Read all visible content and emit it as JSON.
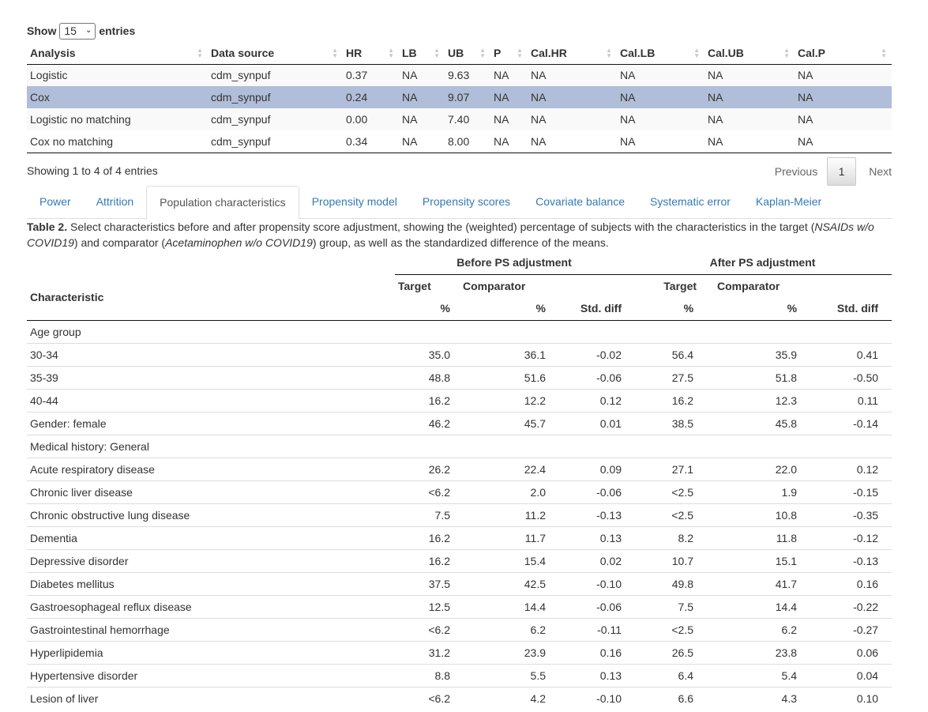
{
  "length": {
    "show": "Show",
    "value": "15",
    "entries": "entries"
  },
  "results": {
    "columns": [
      "Analysis",
      "Data source",
      "HR",
      "LB",
      "UB",
      "P",
      "Cal.HR",
      "Cal.LB",
      "Cal.UB",
      "Cal.P"
    ],
    "rows": [
      [
        "Logistic",
        "cdm_synpuf",
        "0.37",
        "NA",
        "9.63",
        "NA",
        "NA",
        "NA",
        "NA",
        "NA"
      ],
      [
        "Cox",
        "cdm_synpuf",
        "0.24",
        "NA",
        "9.07",
        "NA",
        "NA",
        "NA",
        "NA",
        "NA"
      ],
      [
        "Logistic no matching",
        "cdm_synpuf",
        "0.00",
        "NA",
        "7.40",
        "NA",
        "NA",
        "NA",
        "NA",
        "NA"
      ],
      [
        "Cox no matching",
        "cdm_synpuf",
        "0.34",
        "NA",
        "8.00",
        "NA",
        "NA",
        "NA",
        "NA",
        "NA"
      ]
    ],
    "info": "Showing 1 to 4 of 4 entries",
    "pager": {
      "previous": "Previous",
      "page": "1",
      "next": "Next"
    }
  },
  "tabs": [
    "Power",
    "Attrition",
    "Population characteristics",
    "Propensity model",
    "Propensity scores",
    "Covariate balance",
    "Systematic error",
    "Kaplan-Meier"
  ],
  "caption": {
    "label": "Table 2.",
    "text1": " Select characteristics before and after propensity score adjustment, showing the (weighted) percentage of subjects with the characteristics in the target (",
    "target": "NSAIDs w/o COVID19",
    "text2": ") and comparator (",
    "comparator": "Acetaminophen w/o COVID19",
    "text3": ") group, as well as the standardized difference of the means."
  },
  "char_table": {
    "before": "Before PS adjustment",
    "after": "After PS adjustment",
    "characteristic": "Characteristic",
    "target": "Target",
    "comparator": "Comparator",
    "pct": "%",
    "std": "Std. diff",
    "rows": [
      [
        "Age group",
        "",
        "",
        "",
        "",
        "",
        ""
      ],
      [
        "30-34",
        "35.0",
        "36.1",
        "-0.02",
        "56.4",
        "35.9",
        "0.41"
      ],
      [
        "35-39",
        "48.8",
        "51.6",
        "-0.06",
        "27.5",
        "51.8",
        "-0.50"
      ],
      [
        "40-44",
        "16.2",
        "12.2",
        "0.12",
        "16.2",
        "12.3",
        "0.11"
      ],
      [
        "Gender: female",
        "46.2",
        "45.7",
        "0.01",
        "38.5",
        "45.8",
        "-0.14"
      ],
      [
        "Medical history: General",
        "",
        "",
        "",
        "",
        "",
        ""
      ],
      [
        "Acute respiratory disease",
        "26.2",
        "22.4",
        "0.09",
        "27.1",
        "22.0",
        "0.12"
      ],
      [
        "Chronic liver disease",
        "<6.2",
        "2.0",
        "-0.06",
        "<2.5",
        "1.9",
        "-0.15"
      ],
      [
        "Chronic obstructive lung disease",
        "7.5",
        "11.2",
        "-0.13",
        "<2.5",
        "10.8",
        "-0.35"
      ],
      [
        "Dementia",
        "16.2",
        "11.7",
        "0.13",
        "8.2",
        "11.8",
        "-0.12"
      ],
      [
        "Depressive disorder",
        "16.2",
        "15.4",
        "0.02",
        "10.7",
        "15.1",
        "-0.13"
      ],
      [
        "Diabetes mellitus",
        "37.5",
        "42.5",
        "-0.10",
        "49.8",
        "41.7",
        "0.16"
      ],
      [
        "Gastroesophageal reflux disease",
        "12.5",
        "14.4",
        "-0.06",
        "7.5",
        "14.4",
        "-0.22"
      ],
      [
        "Gastrointestinal hemorrhage",
        "<6.2",
        "6.2",
        "-0.11",
        "<2.5",
        "6.2",
        "-0.27"
      ],
      [
        "Hyperlipidemia",
        "31.2",
        "23.9",
        "0.16",
        "26.5",
        "23.8",
        "0.06"
      ],
      [
        "Hypertensive disorder",
        "8.8",
        "5.5",
        "0.13",
        "6.4",
        "5.4",
        "0.04"
      ],
      [
        "Lesion of liver",
        "<6.2",
        "4.2",
        "-0.10",
        "6.6",
        "4.3",
        "0.10"
      ]
    ]
  }
}
